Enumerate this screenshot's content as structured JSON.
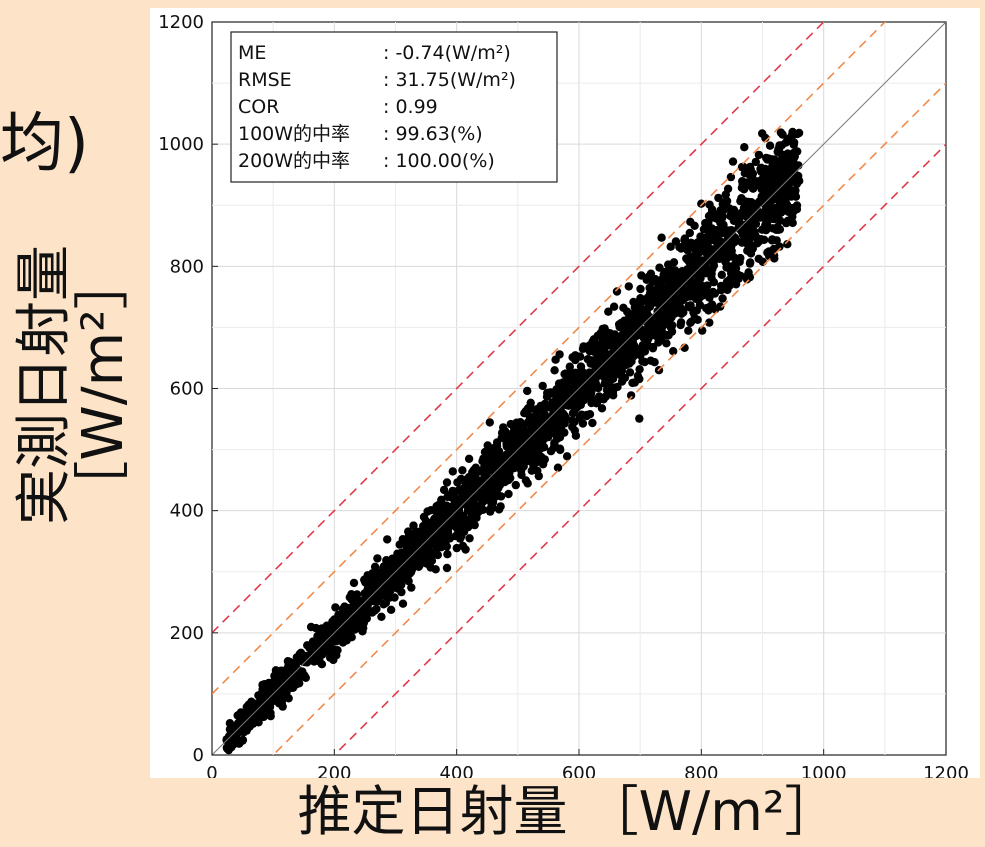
{
  "clip_text": "均)",
  "chart_data": {
    "type": "scatter",
    "title": "",
    "xlabel": "推定日射量 ［W/m²］",
    "ylabel_line1": "実測日射量",
    "ylabel_line2": "［W/m²］",
    "xlim": [
      0,
      1200
    ],
    "ylim": [
      0,
      1200
    ],
    "xticks": [
      "0",
      "200",
      "400",
      "600",
      "800",
      "1000",
      "1200"
    ],
    "yticks": [
      "0",
      "200",
      "400",
      "600",
      "800",
      "1000",
      "1200"
    ],
    "grid": true,
    "reference_lines": [
      {
        "offset": 0,
        "style": "solid",
        "color": "#777777"
      },
      {
        "offset": 100,
        "style": "dashed",
        "color": "#f08a4b"
      },
      {
        "offset": -100,
        "style": "dashed",
        "color": "#f08a4b"
      },
      {
        "offset": 200,
        "style": "dashed",
        "color": "#e03a4a"
      },
      {
        "offset": -200,
        "style": "dashed",
        "color": "#e03a4a"
      }
    ],
    "stats": [
      {
        "key": "ME",
        "value": ": -0.74(W/m²)"
      },
      {
        "key": "RMSE",
        "value": ": 31.75(W/m²)"
      },
      {
        "key": "COR",
        "value": ": 0.99"
      },
      {
        "key": "100W的中率",
        "value": ": 99.63(%)"
      },
      {
        "key": "200W的中率",
        "value": ": 100.00(%)"
      }
    ],
    "stats_position": "top-left",
    "point_color": "#000000",
    "cloud": {
      "x_min": 20,
      "x_max": 960,
      "y_max": 1020,
      "rmse": 31.75,
      "me": -0.74
    }
  }
}
